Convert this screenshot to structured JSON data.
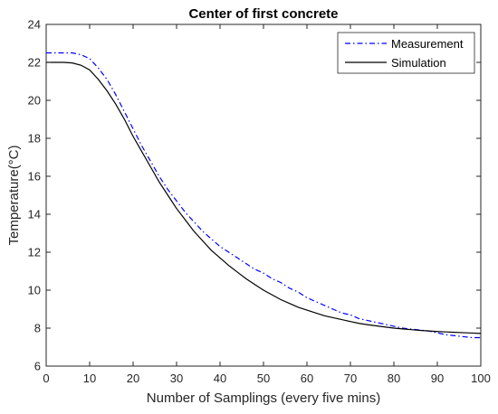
{
  "chart_data": {
    "type": "line",
    "title": "Center of first concrete",
    "xlabel": "Number of Samplings (every five mins)",
    "ylabel": "Temperature(°C)",
    "xlim": [
      0,
      100
    ],
    "ylim": [
      6,
      24
    ],
    "xticks": [
      "0",
      "10",
      "20",
      "30",
      "40",
      "50",
      "60",
      "70",
      "80",
      "90",
      "100"
    ],
    "yticks": [
      "6",
      "8",
      "10",
      "12",
      "14",
      "16",
      "18",
      "20",
      "22",
      "24"
    ],
    "grid": false,
    "legend_position": "top-right",
    "series": [
      {
        "name": "Measurement",
        "color": "#0000ff",
        "style": "dash-dot",
        "x": [
          0,
          2,
          4,
          6,
          8,
          10,
          12,
          14,
          16,
          18,
          20,
          22,
          24,
          26,
          28,
          30,
          32,
          34,
          36,
          38,
          40,
          42,
          44,
          46,
          48,
          50,
          52,
          54,
          56,
          58,
          60,
          62,
          64,
          66,
          68,
          70,
          72,
          74,
          76,
          78,
          80,
          82,
          84,
          86,
          88,
          90,
          92,
          94,
          96,
          98,
          100
        ],
        "values": [
          22.5,
          22.5,
          22.5,
          22.5,
          22.4,
          22.2,
          21.7,
          21.1,
          20.3,
          19.4,
          18.5,
          17.6,
          16.8,
          16.0,
          15.3,
          14.7,
          14.1,
          13.6,
          13.1,
          12.7,
          12.3,
          12.0,
          11.7,
          11.4,
          11.1,
          10.9,
          10.6,
          10.4,
          10.1,
          9.9,
          9.6,
          9.4,
          9.2,
          9.0,
          8.8,
          8.7,
          8.5,
          8.4,
          8.3,
          8.2,
          8.1,
          8.0,
          7.95,
          7.9,
          7.85,
          7.75,
          7.65,
          7.6,
          7.55,
          7.5,
          7.5
        ]
      },
      {
        "name": "Simulation",
        "color": "#000000",
        "style": "solid",
        "x": [
          0,
          2,
          4,
          6,
          8,
          10,
          12,
          14,
          16,
          18,
          20,
          22,
          24,
          26,
          28,
          30,
          32,
          34,
          36,
          38,
          40,
          42,
          44,
          46,
          48,
          50,
          52,
          54,
          56,
          58,
          60,
          62,
          64,
          66,
          68,
          70,
          72,
          74,
          76,
          78,
          80,
          82,
          84,
          86,
          88,
          90,
          92,
          94,
          96,
          98,
          100
        ],
        "values": [
          22.0,
          22.0,
          22.0,
          21.97,
          21.85,
          21.6,
          21.1,
          20.5,
          19.8,
          19.0,
          18.1,
          17.3,
          16.5,
          15.7,
          15.0,
          14.3,
          13.7,
          13.1,
          12.6,
          12.1,
          11.7,
          11.3,
          10.95,
          10.6,
          10.3,
          10.0,
          9.75,
          9.5,
          9.3,
          9.1,
          8.95,
          8.8,
          8.65,
          8.55,
          8.45,
          8.35,
          8.25,
          8.18,
          8.12,
          8.06,
          8.0,
          7.96,
          7.92,
          7.88,
          7.85,
          7.82,
          7.8,
          7.78,
          7.76,
          7.74,
          7.72
        ]
      }
    ]
  }
}
